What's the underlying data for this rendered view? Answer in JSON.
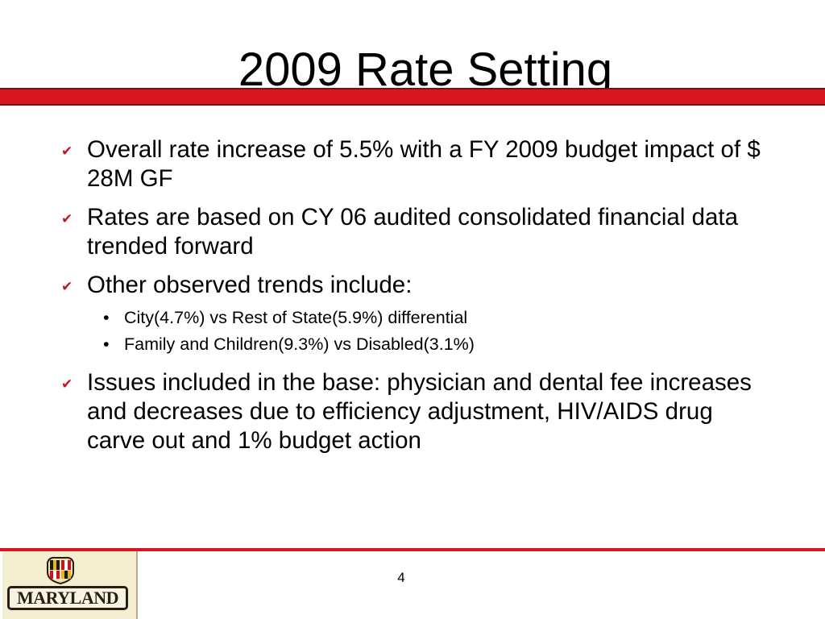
{
  "slide": {
    "title": "2009 Rate Setting",
    "page_number": "4"
  },
  "bullets": [
    {
      "text": "Overall rate increase of 5.5% with a FY 2009 budget impact of $ 28M GF"
    },
    {
      "text": "Rates are based on CY 06 audited consolidated financial data trended forward"
    },
    {
      "text": "Other observed trends include:"
    },
    {
      "text": "Issues included in the base: physician and dental fee increases and decreases due to efficiency adjustment, HIV/AIDS drug carve out and 1% budget action"
    }
  ],
  "sub_bullets": [
    {
      "text": "City(4.7%) vs Rest of State(5.9%) differential"
    },
    {
      "text": "Family and Children(9.3%) vs Disabled(3.1%)"
    }
  ],
  "logo": {
    "wordmark": "MARYLAND"
  },
  "colors": {
    "accent": "#d7161f",
    "bullet_mark": "#c8141c",
    "logo_background": "#f4eed1"
  },
  "icons": {
    "bullet": "checkmark-icon",
    "sub_bullet": "dot-icon",
    "logo": "maryland-flag-seal"
  }
}
